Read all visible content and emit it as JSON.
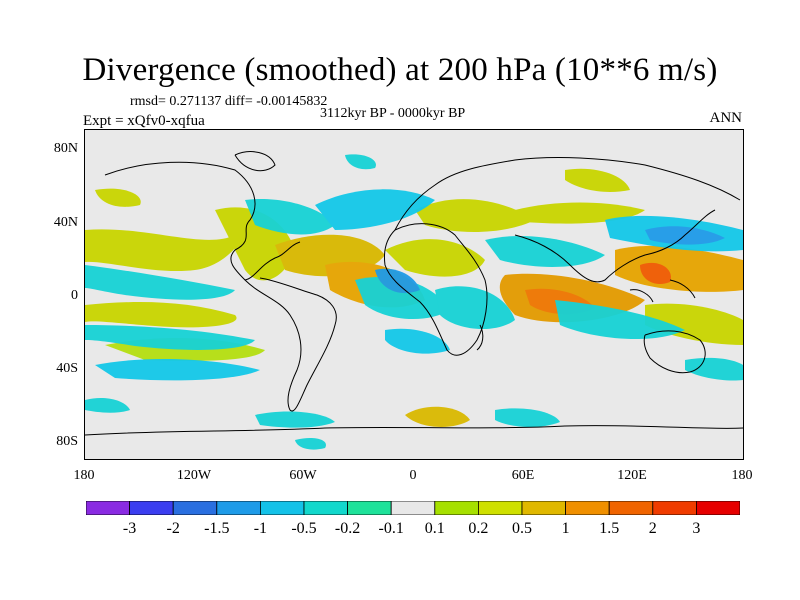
{
  "title": "Divergence (smoothed) at 200 hPa (10**6 m/s)",
  "stats_line": "rmsd= 0.271137 diff= -0.00145832",
  "period": "3112kyr BP - 0000kyr BP",
  "experiment": "Expt = xQfv0-xqfua",
  "season": "ANN",
  "lat_labels": [
    "80N",
    "40N",
    "0",
    "40S",
    "80S"
  ],
  "lon_labels": [
    "180",
    "120W",
    "60W",
    "0",
    "60E",
    "120E",
    "180"
  ],
  "colorbar": {
    "labels": [
      "-3",
      "-2",
      "-1.5",
      "-1",
      "-0.5",
      "-0.2",
      "-0.1",
      "0.1",
      "0.2",
      "0.5",
      "1",
      "1.5",
      "2",
      "3"
    ],
    "colors": [
      "#8a2be2",
      "#3b3ef0",
      "#2a6fe0",
      "#1e9be8",
      "#14c2e8",
      "#12d8cc",
      "#1ee29a",
      "#e8e8e8",
      "#a6e000",
      "#cfe000",
      "#e0b800",
      "#f09000",
      "#f06400",
      "#f03c00",
      "#e60000"
    ]
  }
}
